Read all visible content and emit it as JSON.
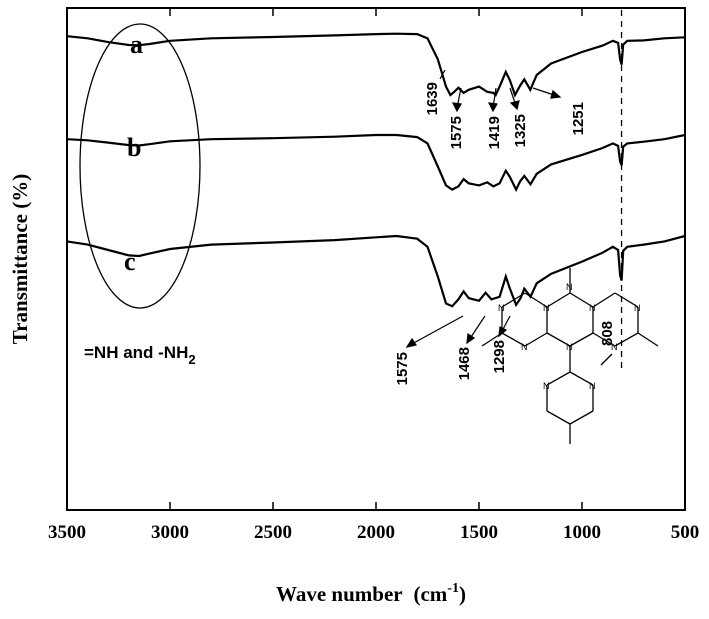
{
  "chart_data": {
    "type": "line",
    "title": "",
    "xlabel": "Wave number",
    "xlabel_unit": "(cm",
    "xlabel_unit_sup": "-1",
    "xlabel_unit_close": ")",
    "ylabel": "Transmittance (%)",
    "xlim": [
      3500,
      500
    ],
    "x_reversed": true,
    "x_ticks": [
      "3500",
      "3000",
      "2500",
      "2000",
      "1500",
      "1000",
      "500"
    ],
    "y_ticks_shown": false,
    "grid": false,
    "series": [
      {
        "name": "a",
        "points": [
          [
            3500,
            0.2
          ],
          [
            3400,
            0.3
          ],
          [
            3300,
            0.48
          ],
          [
            3200,
            0.62
          ],
          [
            3150,
            0.63
          ],
          [
            3100,
            0.57
          ],
          [
            3000,
            0.42
          ],
          [
            2800,
            0.3
          ],
          [
            2500,
            0.24
          ],
          [
            2200,
            0.16
          ],
          [
            2000,
            0.1
          ],
          [
            1900,
            0.08
          ],
          [
            1800,
            0.1
          ],
          [
            1750,
            0.3
          ],
          [
            1700,
            1.3
          ],
          [
            1660,
            2.6
          ],
          [
            1639,
            3.0
          ],
          [
            1620,
            2.85
          ],
          [
            1600,
            2.65
          ],
          [
            1575,
            2.9
          ],
          [
            1550,
            2.75
          ],
          [
            1500,
            2.6
          ],
          [
            1460,
            2.85
          ],
          [
            1430,
            2.9
          ],
          [
            1419,
            3.0
          ],
          [
            1400,
            2.6
          ],
          [
            1370,
            1.9
          ],
          [
            1350,
            2.3
          ],
          [
            1325,
            3.0
          ],
          [
            1300,
            2.55
          ],
          [
            1280,
            2.25
          ],
          [
            1251,
            2.75
          ],
          [
            1220,
            2.05
          ],
          [
            1150,
            1.5
          ],
          [
            1000,
            0.95
          ],
          [
            900,
            0.65
          ],
          [
            850,
            0.42
          ],
          [
            825,
            0.52
          ],
          [
            815,
            1.3
          ],
          [
            808,
            1.55
          ],
          [
            800,
            0.6
          ],
          [
            780,
            0.42
          ],
          [
            700,
            0.4
          ],
          [
            600,
            0.3
          ],
          [
            500,
            0.25
          ]
        ]
      },
      {
        "name": "b",
        "points": [
          [
            3500,
            0.2
          ],
          [
            3400,
            0.25
          ],
          [
            3300,
            0.36
          ],
          [
            3200,
            0.48
          ],
          [
            3150,
            0.5
          ],
          [
            3100,
            0.44
          ],
          [
            3000,
            0.3
          ],
          [
            2800,
            0.2
          ],
          [
            2500,
            0.15
          ],
          [
            2200,
            0.08
          ],
          [
            2000,
            0.0
          ],
          [
            1900,
            0.0
          ],
          [
            1800,
            0.1
          ],
          [
            1750,
            0.4
          ],
          [
            1700,
            1.5
          ],
          [
            1660,
            2.4
          ],
          [
            1630,
            2.6
          ],
          [
            1600,
            2.45
          ],
          [
            1575,
            2.1
          ],
          [
            1550,
            2.3
          ],
          [
            1500,
            2.4
          ],
          [
            1460,
            2.25
          ],
          [
            1430,
            2.45
          ],
          [
            1400,
            2.3
          ],
          [
            1370,
            1.7
          ],
          [
            1350,
            2.0
          ],
          [
            1320,
            2.6
          ],
          [
            1300,
            2.2
          ],
          [
            1280,
            1.95
          ],
          [
            1250,
            2.35
          ],
          [
            1220,
            1.85
          ],
          [
            1150,
            1.4
          ],
          [
            1000,
            0.95
          ],
          [
            900,
            0.62
          ],
          [
            850,
            0.4
          ],
          [
            825,
            0.52
          ],
          [
            815,
            1.25
          ],
          [
            808,
            1.45
          ],
          [
            800,
            0.55
          ],
          [
            780,
            0.4
          ],
          [
            700,
            0.32
          ],
          [
            600,
            0.2
          ],
          [
            500,
            0.0
          ]
        ]
      },
      {
        "name": "c",
        "points": [
          [
            3500,
            0.2
          ],
          [
            3400,
            0.32
          ],
          [
            3300,
            0.52
          ],
          [
            3200,
            0.72
          ],
          [
            3150,
            0.74
          ],
          [
            3100,
            0.65
          ],
          [
            3000,
            0.48
          ],
          [
            2800,
            0.32
          ],
          [
            2500,
            0.24
          ],
          [
            2200,
            0.15
          ],
          [
            2000,
            0.05
          ],
          [
            1900,
            0.0
          ],
          [
            1800,
            0.1
          ],
          [
            1750,
            0.4
          ],
          [
            1700,
            1.5
          ],
          [
            1660,
            2.5
          ],
          [
            1630,
            2.6
          ],
          [
            1600,
            2.35
          ],
          [
            1575,
            2.05
          ],
          [
            1550,
            2.3
          ],
          [
            1500,
            2.4
          ],
          [
            1468,
            2.1
          ],
          [
            1440,
            2.35
          ],
          [
            1400,
            2.25
          ],
          [
            1370,
            1.5
          ],
          [
            1350,
            1.95
          ],
          [
            1320,
            2.55
          ],
          [
            1298,
            2.3
          ],
          [
            1280,
            1.95
          ],
          [
            1250,
            2.25
          ],
          [
            1220,
            1.75
          ],
          [
            1150,
            1.4
          ],
          [
            1000,
            0.95
          ],
          [
            900,
            0.62
          ],
          [
            850,
            0.4
          ],
          [
            825,
            0.52
          ],
          [
            815,
            1.45
          ],
          [
            808,
            1.65
          ],
          [
            800,
            0.55
          ],
          [
            780,
            0.4
          ],
          [
            700,
            0.32
          ],
          [
            600,
            0.2
          ],
          [
            500,
            0.0
          ]
        ]
      }
    ],
    "peak_labels_top": [
      "1639",
      "1575",
      "1419",
      "1325",
      "1251"
    ],
    "peak_labels_bottom": [
      "1575",
      "1468",
      "1298"
    ],
    "reference_line_label": "808",
    "reference_line_x": 808,
    "group_label_part1": "=NH and -NH",
    "group_label_sub": "2"
  }
}
